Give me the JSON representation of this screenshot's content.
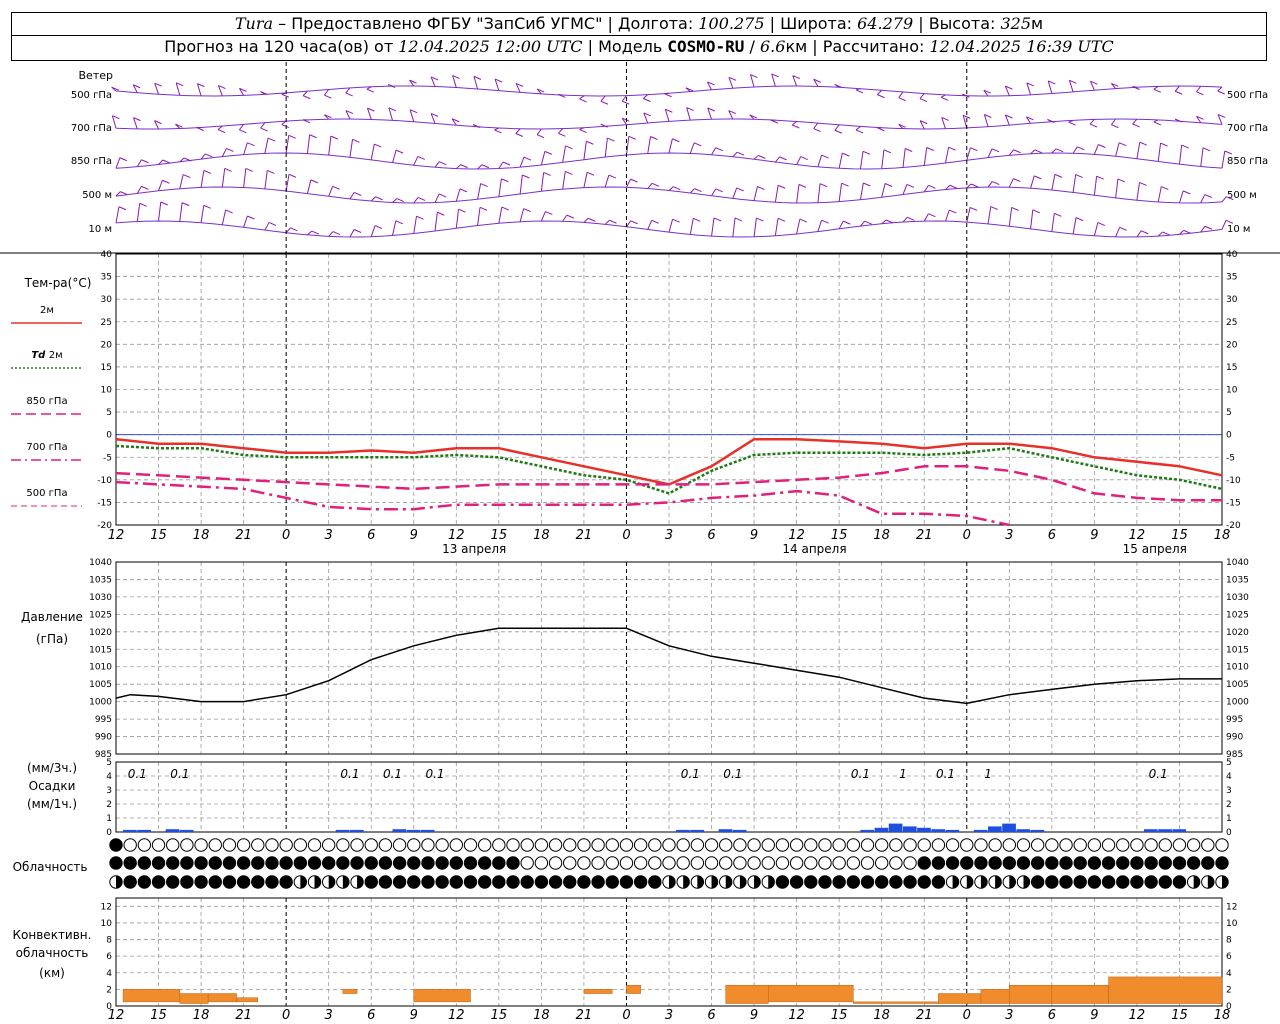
{
  "header": {
    "line1": {
      "station": "Tura",
      "dash": " – ",
      "provider": "Предоставлено ФГБУ \"ЗапСиб УГМС\"",
      "lon_label": "Долгота:",
      "lon": "100.275",
      "lat_label": "Широта:",
      "lat": "64.279",
      "alt_label": "Высота:",
      "alt": "325",
      "alt_unit": "м"
    },
    "line2": {
      "forecast_label": "Прогноз на 120 часа(ов) от",
      "forecast_from": "12.04.2025 12:00 UTC",
      "model_label": "Модель",
      "model": "COSMO-RU",
      "resolution": "6.6",
      "res_unit": "км",
      "calc_label": "Рассчитано:",
      "calculated": "12.04.2025 16:39 UTC"
    }
  },
  "chart_data": {
    "type": "line",
    "x_hour_labels": [
      "12",
      "15",
      "18",
      "21",
      "0",
      "3",
      "6",
      "9",
      "12",
      "15",
      "18",
      "21",
      "0",
      "3",
      "6",
      "9",
      "12",
      "15",
      "18",
      "21",
      "0",
      "3",
      "6",
      "9",
      "12",
      "15",
      "18"
    ],
    "date_labels": [
      {
        "label": "13 апреля",
        "at_hour": 12
      },
      {
        "label": "14 апреля",
        "at_hour": 36
      },
      {
        "label": "15 апреля",
        "at_hour": 60
      }
    ],
    "hours_range": [
      0,
      78
    ],
    "wind": {
      "label": "Ветер",
      "levels": [
        "500 гПа",
        "700 гПа",
        "850 гПа",
        "500 м",
        "10 м"
      ],
      "color": "#8a1ab0",
      "line_color": "#7a30c8"
    },
    "temperature": {
      "title": "Тем-ра(°С)",
      "ylim": [
        -20,
        40
      ],
      "yticks": [
        -20,
        -15,
        -10,
        -5,
        0,
        5,
        10,
        15,
        20,
        25,
        30,
        35,
        40
      ],
      "series": [
        {
          "name": "2м",
          "name_prefix": "",
          "color": "#e8302a",
          "style": "solid",
          "x": [
            0,
            3,
            6,
            9,
            12,
            15,
            18,
            21,
            24,
            27,
            30,
            33,
            36,
            39,
            42,
            45,
            48,
            51,
            54,
            57,
            60,
            63,
            66,
            69,
            72,
            75,
            78
          ],
          "values": [
            -1,
            -2,
            -2,
            -3,
            -4,
            -4,
            -3.5,
            -4,
            -3,
            -3,
            -5,
            -7,
            -9,
            -11,
            -7,
            -1,
            -1,
            -1.5,
            -2,
            -3,
            -2,
            -2,
            -3,
            -5,
            -6,
            -7,
            -9
          ]
        },
        {
          "name": "2м",
          "name_prefix": "Td",
          "color": "#1e7a14",
          "style": "dotted",
          "x": [
            0,
            3,
            6,
            9,
            12,
            15,
            18,
            21,
            24,
            27,
            30,
            33,
            36,
            39,
            42,
            45,
            48,
            51,
            54,
            57,
            60,
            63,
            66,
            69,
            72,
            75,
            78
          ],
          "values": [
            -2.5,
            -3,
            -3,
            -4.5,
            -5,
            -5,
            -5,
            -5,
            -4.5,
            -5,
            -7,
            -9,
            -10,
            -13,
            -8,
            -4.5,
            -4,
            -4,
            -4,
            -4.5,
            -4,
            -3,
            -5,
            -7,
            -9,
            -10,
            -12
          ]
        },
        {
          "name": "гПа",
          "name_prefix": "850",
          "color": "#e0207a",
          "style": "dash",
          "x": [
            0,
            3,
            6,
            9,
            12,
            15,
            18,
            21,
            24,
            27,
            30,
            33,
            36,
            39,
            42,
            45,
            48,
            51,
            54,
            57,
            60,
            63,
            66,
            69,
            72,
            75,
            78
          ],
          "values": [
            -8.5,
            -9,
            -9.5,
            -10,
            -10.5,
            -11,
            -11.5,
            -12,
            -11.5,
            -11,
            -11,
            -11,
            -11,
            -11,
            -11,
            -10.5,
            -10,
            -9.5,
            -8.5,
            -7,
            -7,
            -8,
            -10,
            -13,
            -14,
            -14.5,
            -14.5
          ]
        },
        {
          "name": "гПа",
          "name_prefix": "700",
          "color": "#e0207a",
          "style": "dashdot",
          "x": [
            0,
            3,
            6,
            9,
            12,
            15,
            18,
            21,
            24,
            27,
            30,
            33,
            36,
            39,
            42,
            45,
            48,
            51,
            54,
            57,
            60,
            63
          ],
          "values": [
            -10.5,
            -11,
            -11.5,
            -12,
            -14,
            -16,
            -16.5,
            -16.5,
            -15.5,
            -15.5,
            -15.5,
            -15.5,
            -15.5,
            -15,
            -14,
            -13.5,
            -12.5,
            -13.5,
            -17.5,
            -17.5,
            -18,
            -20
          ]
        },
        {
          "name": "гПа",
          "name_prefix": "500",
          "color": "#e0207a",
          "style": "thin-dash",
          "x": [],
          "values": []
        }
      ]
    },
    "pressure": {
      "title": "Давление",
      "unit": "(гПа)",
      "ylim": [
        985,
        1040
      ],
      "yticks": [
        985,
        990,
        995,
        1000,
        1005,
        1010,
        1015,
        1020,
        1025,
        1030,
        1035,
        1040
      ],
      "x": [
        0,
        1,
        3,
        6,
        9,
        12,
        15,
        18,
        21,
        24,
        27,
        30,
        33,
        36,
        39,
        42,
        45,
        48,
        51,
        54,
        57,
        60,
        63,
        66,
        69,
        72,
        75,
        78
      ],
      "values": [
        1001,
        1002,
        1001.5,
        1000,
        1000,
        1002,
        1006,
        1012,
        1016,
        1019,
        1021,
        1021,
        1021,
        1021,
        1016,
        1013,
        1011,
        1009,
        1007,
        1004,
        1001,
        999.5,
        1002,
        1003.5,
        1005,
        1006,
        1006.5,
        1006.5
      ],
      "color": "#000000"
    },
    "precipitation": {
      "title": "Осадки",
      "unit_top": "(мм/3ч.)",
      "unit_bottom": "(мм/1ч.)",
      "ylim": [
        0,
        5
      ],
      "yticks": [
        0,
        1,
        2,
        3,
        4,
        5
      ],
      "color": "#1f4fe0",
      "totals": [
        {
          "hour": 1.5,
          "label": "0.1"
        },
        {
          "hour": 4.5,
          "label": "0.1"
        },
        {
          "hour": 16.5,
          "label": "0.1"
        },
        {
          "hour": 19.5,
          "label": "0.1"
        },
        {
          "hour": 22.5,
          "label": "0.1"
        },
        {
          "hour": 40.5,
          "label": "0.1"
        },
        {
          "hour": 43.5,
          "label": "0.1"
        },
        {
          "hour": 52.5,
          "label": "0.1"
        },
        {
          "hour": 55.5,
          "label": "1"
        },
        {
          "hour": 58.5,
          "label": "0.1"
        },
        {
          "hour": 61.5,
          "label": "1"
        },
        {
          "hour": 73.5,
          "label": "0.1"
        }
      ],
      "hourly": [
        [
          1,
          0.1
        ],
        [
          2,
          0.1
        ],
        [
          4,
          0.2
        ],
        [
          5,
          0.1
        ],
        [
          16,
          0.1
        ],
        [
          17,
          0.1
        ],
        [
          20,
          0.2
        ],
        [
          21,
          0.1
        ],
        [
          22,
          0.1
        ],
        [
          40,
          0.1
        ],
        [
          41,
          0.1
        ],
        [
          43,
          0.2
        ],
        [
          44,
          0.1
        ],
        [
          53,
          0.1
        ],
        [
          54,
          0.3
        ],
        [
          55,
          0.6
        ],
        [
          56,
          0.4
        ],
        [
          57,
          0.3
        ],
        [
          58,
          0.2
        ],
        [
          59,
          0.1
        ],
        [
          61,
          0.1
        ],
        [
          62,
          0.4
        ],
        [
          63,
          0.6
        ],
        [
          64,
          0.2
        ],
        [
          65,
          0.1
        ],
        [
          73,
          0.2
        ],
        [
          74,
          0.2
        ],
        [
          75,
          0.2
        ]
      ]
    },
    "cloudiness": {
      "title": "Облачность",
      "rows": [
        "FEEEEEEEEEEEEEEEEEEEEEEEEEEEEEEEEEEEEEEEEEEEEEEEEEEEEEEEEEEEEEEEEEEEEEEEEEEEEEEE",
        "FFFFFFFFFFFFFFFFFFFFFFFFFFFFFEEEEEEEEEEEEEEEEEEEEEEEEEEEEFFFFFFFFFFFFFFFFFFFFFFFF",
        "HFFFFFFFFFFFFHHHHHFFFFFFFFFFFFFFFFFFFFFHHHHHHHHFFFFFFFFFFFFHHHHHHFFFFFFFFFFFHHHHE"
      ],
      "legend": "F=full, H=half, E=empty"
    },
    "convective": {
      "title_1": "Конвективн.",
      "title_2": "облачность",
      "unit": "(км)",
      "ylim": [
        0,
        13
      ],
      "yticks": [
        0,
        2,
        4,
        6,
        8,
        10,
        12
      ],
      "color": "#f08c2c",
      "segments": [
        [
          0.5,
          4.5,
          0.5,
          2.0
        ],
        [
          4.5,
          6.5,
          0.3,
          1.5
        ],
        [
          6.5,
          8.5,
          0.5,
          1.5
        ],
        [
          8.5,
          10,
          0.5,
          1.0
        ],
        [
          10,
          14,
          0.5,
          0.5
        ],
        [
          16,
          17,
          1.5,
          2.0
        ],
        [
          21,
          25,
          0.5,
          2.0
        ],
        [
          33,
          35,
          1.5,
          2.0
        ],
        [
          36,
          37,
          1.5,
          2.5
        ],
        [
          43,
          46,
          0.3,
          2.5
        ],
        [
          46,
          52,
          0.5,
          2.5
        ],
        [
          52,
          58,
          0.3,
          0.5
        ],
        [
          58,
          61,
          0.3,
          1.5
        ],
        [
          61,
          63,
          0.3,
          2.0
        ],
        [
          63,
          66,
          0.3,
          2.5
        ],
        [
          66,
          70,
          0.3,
          2.5
        ],
        [
          70,
          78,
          0.3,
          3.5
        ]
      ]
    }
  }
}
